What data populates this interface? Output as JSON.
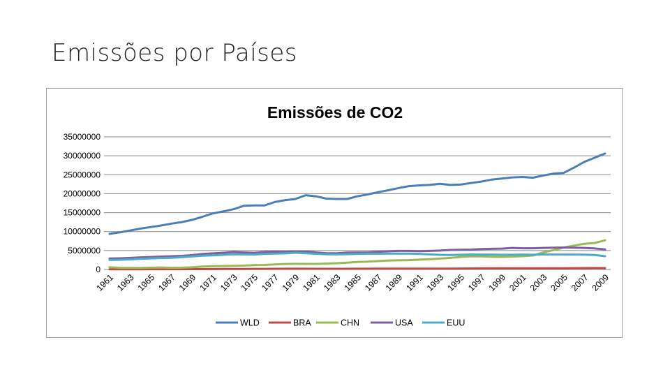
{
  "slide": {
    "title": "Emissões por Países"
  },
  "chart_data": {
    "type": "line",
    "title": "Emissões de CO2",
    "xlabel": "",
    "ylabel": "",
    "ylim": [
      0,
      35000000
    ],
    "yticks": [
      0,
      5000000,
      10000000,
      15000000,
      20000000,
      25000000,
      30000000,
      35000000
    ],
    "ytick_labels": [
      "0",
      "5000000",
      "10000000",
      "15000000",
      "20000000",
      "25000000",
      "30000000",
      "35000000"
    ],
    "x": [
      1961,
      1962,
      1963,
      1964,
      1965,
      1966,
      1967,
      1968,
      1969,
      1970,
      1971,
      1972,
      1973,
      1974,
      1975,
      1976,
      1977,
      1978,
      1979,
      1980,
      1981,
      1982,
      1983,
      1984,
      1985,
      1986,
      1987,
      1988,
      1989,
      1990,
      1991,
      1992,
      1993,
      1994,
      1995,
      1996,
      1997,
      1998,
      1999,
      2000,
      2001,
      2002,
      2003,
      2004,
      2005,
      2006,
      2007,
      2008,
      2009
    ],
    "xtick_labels": [
      "1961",
      "1963",
      "1965",
      "1967",
      "1969",
      "1971",
      "1973",
      "1975",
      "1977",
      "1979",
      "1981",
      "1983",
      "1985",
      "1987",
      "1989",
      "1991",
      "1993",
      "1995",
      "1997",
      "1999",
      "2001",
      "2003",
      "2005",
      "2007",
      "2009"
    ],
    "grid": true,
    "legend_position": "bottom",
    "series": [
      {
        "name": "WLD",
        "color": "#4a7ebb",
        "values": [
          9400000,
          9800000,
          10300000,
          10800000,
          11200000,
          11600000,
          12100000,
          12500000,
          13100000,
          13900000,
          14800000,
          15300000,
          15900000,
          16800000,
          16900000,
          16900000,
          17800000,
          18300000,
          18600000,
          19600000,
          19300000,
          18700000,
          18600000,
          18600000,
          19300000,
          19800000,
          20400000,
          20900000,
          21500000,
          22000000,
          22200000,
          22300000,
          22600000,
          22300000,
          22400000,
          22800000,
          23200000,
          23700000,
          24000000,
          24300000,
          24400000,
          24200000,
          24800000,
          25300000,
          25500000,
          26900000,
          28400000,
          29500000,
          30600000
        ]
      },
      {
        "name": "BRA",
        "color": "#be4b48",
        "values": [
          50000,
          55000,
          60000,
          62000,
          65000,
          70000,
          75000,
          82000,
          90000,
          100000,
          112000,
          125000,
          140000,
          155000,
          165000,
          175000,
          185000,
          195000,
          205000,
          200000,
          190000,
          180000,
          182000,
          188000,
          195000,
          205000,
          212000,
          215000,
          218000,
          212000,
          222000,
          228000,
          235000,
          245000,
          265000,
          280000,
          295000,
          305000,
          312000,
          320000,
          325000,
          325000,
          320000,
          332000,
          340000,
          348000,
          365000,
          390000,
          370000
        ]
      },
      {
        "name": "CHN",
        "color": "#98b954",
        "values": [
          600000,
          450000,
          420000,
          430000,
          480000,
          530000,
          450000,
          480000,
          580000,
          770000,
          870000,
          930000,
          970000,
          1040000,
          1150000,
          1200000,
          1340000,
          1460000,
          1500000,
          1480000,
          1470000,
          1560000,
          1650000,
          1800000,
          1990000,
          2060000,
          2210000,
          2380000,
          2420000,
          2460000,
          2590000,
          2700000,
          2880000,
          3050000,
          3320000,
          3460000,
          3470000,
          3380000,
          3320000,
          3400000,
          3500000,
          3680000,
          4500000,
          5100000,
          5800000,
          6300000,
          6800000,
          7000000,
          7700000
        ]
      },
      {
        "name": "USA",
        "color": "#7d5fa0",
        "values": [
          2900000,
          2950000,
          3050000,
          3200000,
          3300000,
          3400000,
          3500000,
          3600000,
          3800000,
          4100000,
          4250000,
          4400000,
          4600000,
          4500000,
          4400000,
          4600000,
          4700000,
          4650000,
          4750000,
          4750000,
          4500000,
          4300000,
          4300000,
          4450000,
          4500000,
          4500000,
          4650000,
          4800000,
          4900000,
          4900000,
          4850000,
          4900000,
          5000000,
          5150000,
          5200000,
          5250000,
          5400000,
          5450000,
          5500000,
          5700000,
          5600000,
          5600000,
          5700000,
          5750000,
          5800000,
          5750000,
          5700000,
          5550000,
          5300000
        ]
      },
      {
        "name": "EUU",
        "color": "#4bacc6",
        "values": [
          2500000,
          2560000,
          2680000,
          2800000,
          2920000,
          3020000,
          3100000,
          3240000,
          3420000,
          3640000,
          3740000,
          3860000,
          4020000,
          3980000,
          3940000,
          4120000,
          4180000,
          4260000,
          4420000,
          4300000,
          4140000,
          4020000,
          3980000,
          4040000,
          4120000,
          4160000,
          4160000,
          4180000,
          4200000,
          4180000,
          4120000,
          3980000,
          3860000,
          3840000,
          3880000,
          3960000,
          3940000,
          3940000,
          3880000,
          3880000,
          3940000,
          3880000,
          3960000,
          3960000,
          3940000,
          3940000,
          3900000,
          3820000,
          3500000
        ]
      }
    ]
  }
}
